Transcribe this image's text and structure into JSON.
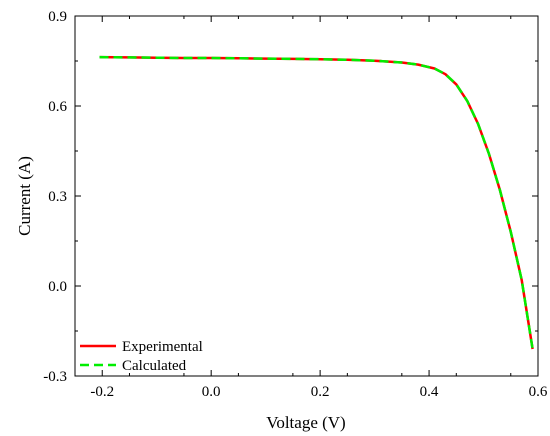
{
  "chart_data": {
    "type": "line",
    "xlabel": "Voltage (V)",
    "ylabel": "Current (A)",
    "xlim": [
      -0.25,
      0.6
    ],
    "ylim": [
      -0.3,
      0.9
    ],
    "xticks": [
      -0.2,
      0.0,
      0.2,
      0.4,
      0.6
    ],
    "xtick_labels": [
      "-0.2",
      "0.0",
      "0.2",
      "0.4",
      "0.6"
    ],
    "yticks": [
      -0.3,
      0.0,
      0.3,
      0.6,
      0.9
    ],
    "ytick_labels": [
      "-0.3",
      "0.0",
      "0.3",
      "0.6",
      "0.9"
    ],
    "grid": false,
    "legend_position": "bottom-left",
    "series": [
      {
        "name": "Experimental",
        "color": "#ff0000",
        "dash": "solid",
        "x": [
          -0.205,
          -0.15,
          -0.1,
          -0.05,
          0.0,
          0.05,
          0.1,
          0.15,
          0.2,
          0.25,
          0.3,
          0.35,
          0.38,
          0.41,
          0.43,
          0.45,
          0.47,
          0.49,
          0.51,
          0.53,
          0.55,
          0.57,
          0.59
        ],
        "y": [
          0.763,
          0.762,
          0.761,
          0.76,
          0.76,
          0.759,
          0.758,
          0.757,
          0.756,
          0.754,
          0.751,
          0.745,
          0.738,
          0.725,
          0.706,
          0.672,
          0.617,
          0.54,
          0.44,
          0.32,
          0.18,
          0.02,
          -0.21
        ]
      },
      {
        "name": "Calculated",
        "color": "#00ee00",
        "dash": "dashed",
        "x": [
          -0.205,
          -0.15,
          -0.1,
          -0.05,
          0.0,
          0.05,
          0.1,
          0.15,
          0.2,
          0.25,
          0.3,
          0.35,
          0.38,
          0.41,
          0.43,
          0.45,
          0.47,
          0.49,
          0.51,
          0.53,
          0.55,
          0.57,
          0.59
        ],
        "y": [
          0.763,
          0.762,
          0.761,
          0.76,
          0.76,
          0.759,
          0.758,
          0.757,
          0.756,
          0.754,
          0.751,
          0.745,
          0.738,
          0.725,
          0.706,
          0.672,
          0.617,
          0.54,
          0.44,
          0.32,
          0.18,
          0.02,
          -0.21
        ]
      }
    ]
  }
}
